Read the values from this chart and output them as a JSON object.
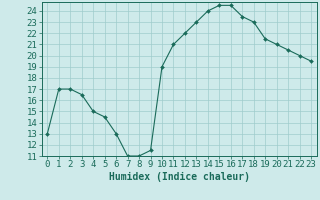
{
  "x": [
    0,
    1,
    2,
    3,
    4,
    5,
    6,
    7,
    8,
    9,
    10,
    11,
    12,
    13,
    14,
    15,
    16,
    17,
    18,
    19,
    20,
    21,
    22,
    23
  ],
  "y": [
    13,
    17,
    17,
    16.5,
    15,
    14.5,
    13,
    11,
    11,
    11.5,
    19,
    21,
    22,
    23,
    24,
    24.5,
    24.5,
    23.5,
    23,
    21.5,
    21,
    20.5,
    20,
    19.5
  ],
  "line_color": "#1a6b5a",
  "marker": "D",
  "marker_size": 2,
  "bg_color": "#ceeaea",
  "grid_color": "#a0cccc",
  "xlabel": "Humidex (Indice chaleur)",
  "xlim": [
    -0.5,
    23.5
  ],
  "ylim": [
    11,
    24.8
  ],
  "yticks": [
    11,
    12,
    13,
    14,
    15,
    16,
    17,
    18,
    19,
    20,
    21,
    22,
    23,
    24
  ],
  "xticks": [
    0,
    1,
    2,
    3,
    4,
    5,
    6,
    7,
    8,
    9,
    10,
    11,
    12,
    13,
    14,
    15,
    16,
    17,
    18,
    19,
    20,
    21,
    22,
    23
  ],
  "xlabel_fontsize": 7,
  "tick_fontsize": 6.5
}
